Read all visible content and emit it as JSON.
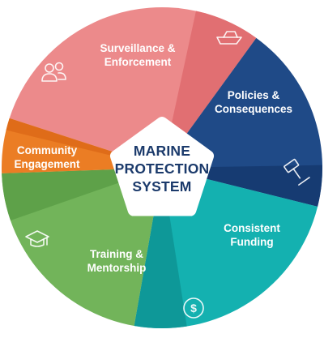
{
  "title_lines": [
    "MARINE",
    "PROTECTION",
    "SYSTEM"
  ],
  "segments": [
    {
      "lines": [
        "Surveillance &",
        "Enforcement"
      ],
      "color": "#ec8a8b",
      "color2": "#e06b6f",
      "icon": "boat-icon"
    },
    {
      "lines": [
        "Policies &",
        "Consequences"
      ],
      "color": "#1f4a87",
      "color2": "#153a70",
      "icon": "gavel-icon"
    },
    {
      "lines": [
        "Consistent",
        "Funding"
      ],
      "color": "#14b1b0",
      "color2": "#0d9696",
      "icon": "dollar-coin-icon"
    },
    {
      "lines": [
        "Training &",
        "Mentorship"
      ],
      "color": "#72b45a",
      "color2": "#5c9f47",
      "icon": "graduation-cap-icon"
    },
    {
      "lines": [
        "Community",
        "Engagement"
      ],
      "color": "#eb7d24",
      "color2": "#de6a18",
      "icon": "people-icon"
    }
  ]
}
